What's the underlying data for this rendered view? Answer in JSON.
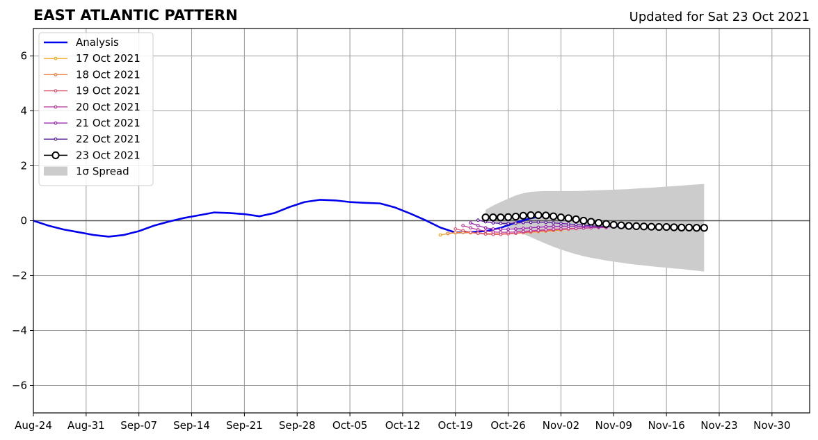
{
  "title": "EAST ATLANTIC PATTERN",
  "subtitle": "Updated for Sat 23 Oct 2021",
  "chart_data": {
    "type": "line",
    "title": "EAST ATLANTIC PATTERN",
    "subtitle": "Updated for Sat 23 Oct 2021",
    "xlabel": "",
    "ylabel": "",
    "x_tick_labels": [
      "Aug-24",
      "Aug-31",
      "Sep-07",
      "Sep-14",
      "Sep-21",
      "Sep-28",
      "Oct-05",
      "Oct-12",
      "Oct-19",
      "Oct-26",
      "Nov-02",
      "Nov-09",
      "Nov-16",
      "Nov-23",
      "Nov-30"
    ],
    "y_ticks": [
      -6,
      -4,
      -2,
      0,
      2,
      4,
      6
    ],
    "y_tick_labels": [
      "−6",
      "−4",
      "−2",
      "0",
      "2",
      "4",
      "6"
    ],
    "xlim_days": [
      0,
      103
    ],
    "ylim": [
      -7,
      7
    ],
    "grid": true,
    "zero_line": true,
    "legend_position": "top-left",
    "legend": [
      "Analysis",
      "17 Oct 2021",
      "18 Oct 2021",
      "19 Oct 2021",
      "20 Oct 2021",
      "21 Oct 2021",
      "22 Oct 2021",
      "23 Oct 2021",
      "1σ Spread"
    ],
    "analysis": {
      "name": "Analysis",
      "color": "#0000ee",
      "x": [
        0,
        2,
        4,
        6,
        8,
        10,
        12,
        14,
        16,
        18,
        20,
        22,
        24,
        26,
        28,
        30,
        32,
        34,
        36,
        38,
        40,
        42,
        44,
        46,
        48,
        50,
        52,
        54,
        56,
        58,
        60,
        62,
        64,
        66,
        68,
        69
      ],
      "y": [
        0,
        -0.18,
        -0.32,
        -0.42,
        -0.52,
        -0.58,
        -0.52,
        -0.38,
        -0.18,
        -0.03,
        0.1,
        0.2,
        0.3,
        0.28,
        0.24,
        0.16,
        0.28,
        0.5,
        0.68,
        0.76,
        0.74,
        0.68,
        0.65,
        0.63,
        0.48,
        0.26,
        0.02,
        -0.25,
        -0.43,
        -0.42,
        -0.38,
        -0.26,
        -0.07,
        0.09,
        0.19,
        0.22
      ]
    },
    "forecasts": [
      {
        "name": "17 Oct 2021",
        "color": "#f5a623",
        "x_start": 54,
        "x_end": 70,
        "y": [
          -0.52,
          -0.47,
          -0.44,
          -0.43,
          -0.44,
          -0.46,
          -0.47,
          -0.48,
          -0.48,
          -0.47,
          -0.46,
          -0.44,
          -0.42,
          -0.4,
          -0.38,
          -0.36,
          -0.34
        ]
      },
      {
        "name": "18 Oct 2021",
        "color": "#ef7f3b",
        "x_start": 55,
        "x_end": 72,
        "y": [
          -0.46,
          -0.43,
          -0.42,
          -0.43,
          -0.45,
          -0.47,
          -0.48,
          -0.48,
          -0.47,
          -0.45,
          -0.43,
          -0.41,
          -0.39,
          -0.37,
          -0.35,
          -0.33,
          -0.31,
          -0.29
        ]
      },
      {
        "name": "19 Oct 2021",
        "color": "#e05570",
        "x_start": 56,
        "x_end": 74,
        "y": [
          -0.3,
          -0.36,
          -0.42,
          -0.46,
          -0.49,
          -0.5,
          -0.5,
          -0.48,
          -0.46,
          -0.43,
          -0.4,
          -0.37,
          -0.35,
          -0.33,
          -0.31,
          -0.29,
          -0.28,
          -0.27,
          -0.26
        ]
      },
      {
        "name": "20 Oct 2021",
        "color": "#c03898",
        "x_start": 57,
        "x_end": 76,
        "y": [
          -0.18,
          -0.26,
          -0.33,
          -0.38,
          -0.41,
          -0.42,
          -0.42,
          -0.41,
          -0.39,
          -0.37,
          -0.35,
          -0.33,
          -0.31,
          -0.3,
          -0.29,
          -0.28,
          -0.27,
          -0.26,
          -0.25,
          -0.25
        ]
      },
      {
        "name": "21 Oct 2021",
        "color": "#9b1fb2",
        "x_start": 58,
        "x_end": 78,
        "y": [
          -0.08,
          -0.18,
          -0.26,
          -0.3,
          -0.31,
          -0.31,
          -0.3,
          -0.28,
          -0.26,
          -0.24,
          -0.22,
          -0.21,
          -0.2,
          -0.2,
          -0.2,
          -0.21,
          -0.21,
          -0.22,
          -0.22,
          -0.22,
          -0.22
        ]
      },
      {
        "name": "22 Oct 2021",
        "color": "#5a1b9c",
        "x_start": 59,
        "x_end": 80,
        "y": [
          0.02,
          -0.04,
          -0.08,
          -0.1,
          -0.1,
          -0.09,
          -0.07,
          -0.06,
          -0.05,
          -0.06,
          -0.08,
          -0.1,
          -0.12,
          -0.14,
          -0.16,
          -0.18,
          -0.2,
          -0.21,
          -0.22,
          -0.23,
          -0.24,
          -0.25
        ]
      }
    ],
    "current_forecast": {
      "name": "23 Oct 2021",
      "color": "#000000",
      "x_start": 60,
      "x_end": 89,
      "y": [
        0.12,
        0.12,
        0.12,
        0.13,
        0.15,
        0.18,
        0.2,
        0.2,
        0.19,
        0.16,
        0.12,
        0.09,
        0.05,
        0.0,
        -0.04,
        -0.08,
        -0.12,
        -0.15,
        -0.17,
        -0.19,
        -0.2,
        -0.21,
        -0.22,
        -0.23,
        -0.23,
        -0.24,
        -0.25,
        -0.25,
        -0.26,
        -0.26
      ]
    },
    "spread": {
      "name": "1σ Spread",
      "color": "#cccccc",
      "x_start": 60,
      "x_end": 89,
      "upper": [
        0.4,
        0.55,
        0.68,
        0.8,
        0.92,
        1.0,
        1.05,
        1.07,
        1.08,
        1.08,
        1.08,
        1.08,
        1.08,
        1.09,
        1.1,
        1.11,
        1.12,
        1.13,
        1.14,
        1.15,
        1.17,
        1.19,
        1.2,
        1.22,
        1.24,
        1.26,
        1.28,
        1.3,
        1.32,
        1.34
      ],
      "lower": [
        0.05,
        -0.02,
        -0.12,
        -0.24,
        -0.36,
        -0.48,
        -0.6,
        -0.72,
        -0.84,
        -0.95,
        -1.05,
        -1.14,
        -1.22,
        -1.29,
        -1.35,
        -1.4,
        -1.45,
        -1.49,
        -1.53,
        -1.57,
        -1.6,
        -1.63,
        -1.66,
        -1.69,
        -1.71,
        -1.74,
        -1.76,
        -1.79,
        -1.82,
        -1.85
      ]
    }
  }
}
